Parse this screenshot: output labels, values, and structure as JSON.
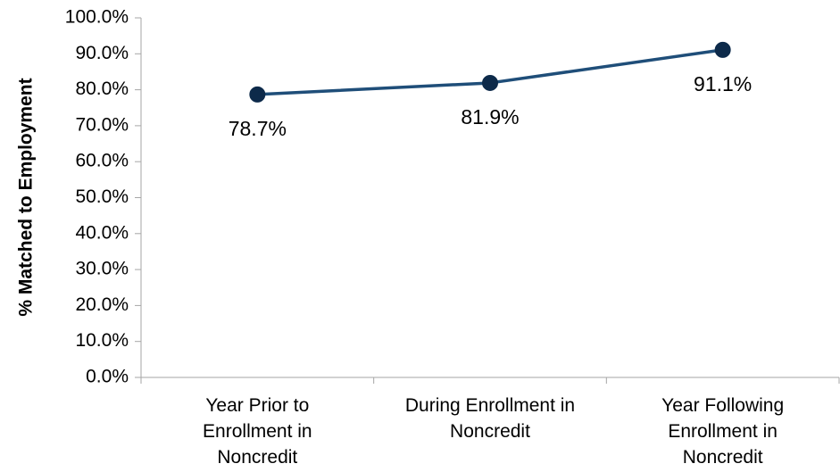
{
  "chart_data": {
    "type": "line",
    "title": "",
    "xlabel": "",
    "ylabel": "% Matched to Employment",
    "categories": [
      [
        "Year Prior to",
        "Enrollment in",
        "Noncredit"
      ],
      [
        "During Enrollment in",
        "Noncredit"
      ],
      [
        "Year Following",
        "Enrollment in",
        "Noncredit"
      ]
    ],
    "series": [
      {
        "values": [
          78.7,
          81.9,
          91.1
        ],
        "data_labels": [
          "78.7%",
          "81.9%",
          "91.1%"
        ],
        "color": "#1F4E79",
        "marker_color": "#0D2A4A"
      }
    ],
    "ylim": [
      0,
      100
    ],
    "yticks": [
      0,
      10,
      20,
      30,
      40,
      50,
      60,
      70,
      80,
      90,
      100
    ],
    "ytick_labels": [
      "0.0%",
      "10.0%",
      "20.0%",
      "30.0%",
      "40.0%",
      "50.0%",
      "60.0%",
      "70.0%",
      "80.0%",
      "90.0%",
      "100.0%"
    ],
    "grid": false,
    "legend": "none",
    "axis_color": "#A6A6A6"
  }
}
